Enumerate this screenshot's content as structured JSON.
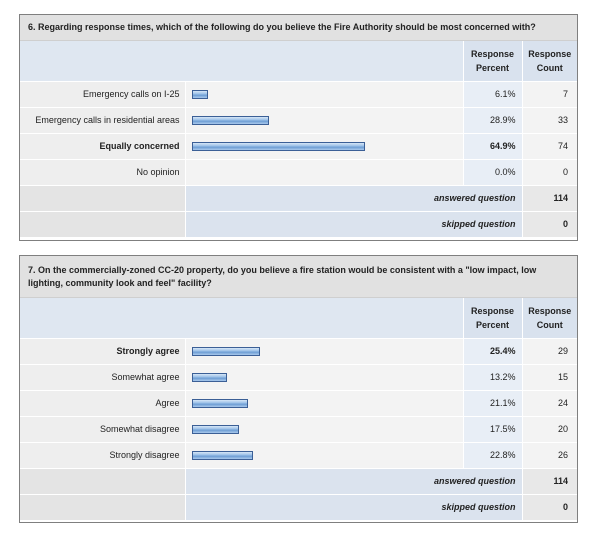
{
  "questions": [
    {
      "title": "6. Regarding response times, which of the following do you believe the Fire Authority should be most concerned with?",
      "header": {
        "percent": "Response Percent",
        "count": "Response Count"
      },
      "rows": [
        {
          "label": "Emergency calls on I-25",
          "percent": "6.1%",
          "value": 6.1,
          "count": "7",
          "bold": false
        },
        {
          "label": "Emergency calls in residential areas",
          "percent": "28.9%",
          "value": 28.9,
          "count": "33",
          "bold": false
        },
        {
          "label": "Equally concerned",
          "percent": "64.9%",
          "value": 64.9,
          "count": "74",
          "bold": true
        },
        {
          "label": "No opinion",
          "percent": "0.0%",
          "value": 0.0,
          "count": "0",
          "bold": false
        }
      ],
      "answered_label": "answered question",
      "answered_value": "114",
      "skipped_label": "skipped question",
      "skipped_value": "0"
    },
    {
      "title": "7. On the commercially-zoned CC-20 property, do you believe a fire station would be consistent with a \"low impact, low lighting, community look and feel\" facility?",
      "header": {
        "percent": "Response Percent",
        "count": "Response Count"
      },
      "rows": [
        {
          "label": "Strongly agree",
          "percent": "25.4%",
          "value": 25.4,
          "count": "29",
          "bold": true
        },
        {
          "label": "Somewhat agree",
          "percent": "13.2%",
          "value": 13.2,
          "count": "15",
          "bold": false
        },
        {
          "label": "Agree",
          "percent": "21.1%",
          "value": 21.1,
          "count": "24",
          "bold": false
        },
        {
          "label": "Somewhat disagree",
          "percent": "17.5%",
          "value": 17.5,
          "count": "20",
          "bold": false
        },
        {
          "label": "Strongly disagree",
          "percent": "22.8%",
          "value": 22.8,
          "count": "26",
          "bold": false
        }
      ],
      "answered_label": "answered question",
      "answered_value": "114",
      "skipped_label": "skipped question",
      "skipped_value": "0"
    }
  ],
  "colors": {
    "bar_border": "#3b5f96",
    "bar_fill": "#9fc3e9",
    "header_bg": "#d9e2ee",
    "title_bg": "#e1e1e1"
  }
}
